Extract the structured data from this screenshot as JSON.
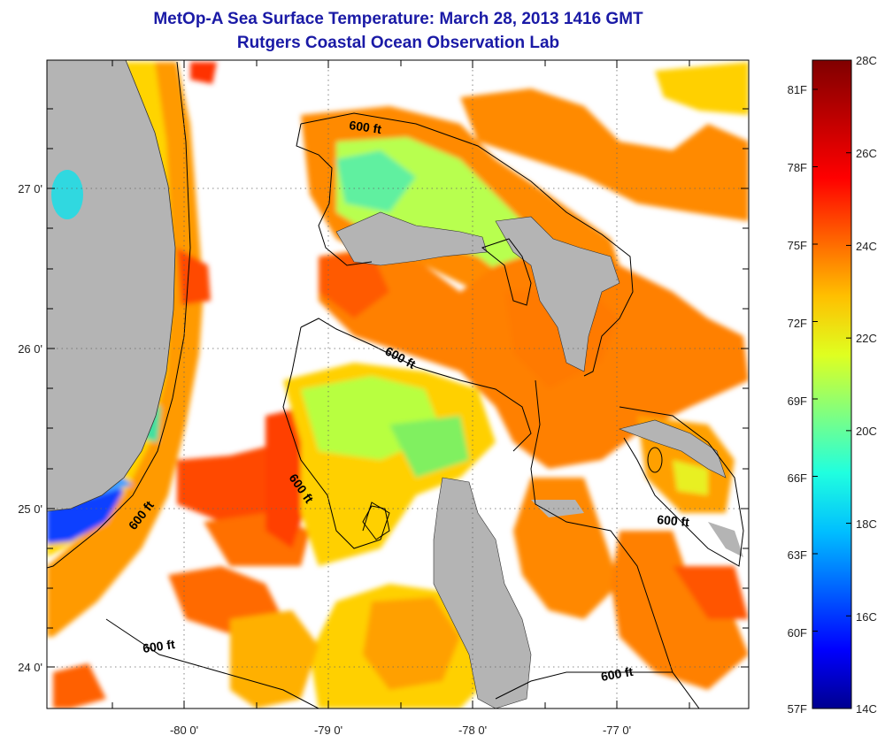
{
  "title": "MetOp-A Sea Surface Temperature:  March 28, 2013 1416 GMT",
  "subtitle": "Rutgers Coastal Ocean Observation Lab",
  "map": {
    "lat_labels": [
      "27 0'",
      "26 0'",
      "25 0'",
      "24 0'"
    ],
    "lon_labels": [
      "-80 0'",
      "-79 0'",
      "-78 0'",
      "-77 0'"
    ],
    "isobath_labels": [
      "600 ft",
      "600 ft",
      "600 ft",
      "600 ft",
      "600 ft",
      "600 ft"
    ]
  },
  "colorbar": {
    "fahrenheit_labels": [
      "81F",
      "78F",
      "75F",
      "72F",
      "69F",
      "66F",
      "63F",
      "60F",
      "57F"
    ],
    "celsius_labels": [
      "28C",
      "26C",
      "24C",
      "22C",
      "20C",
      "18C",
      "16C",
      "14C"
    ],
    "colors": [
      "#00008f",
      "#0000ff",
      "#0060ff",
      "#00bfff",
      "#20ffdf",
      "#80ff80",
      "#dfff20",
      "#ffbf00",
      "#ff6000",
      "#ff0000",
      "#bf0000",
      "#800000"
    ]
  },
  "colors": {
    "land": "#b4b4b4",
    "title": "#1a1aa6"
  }
}
